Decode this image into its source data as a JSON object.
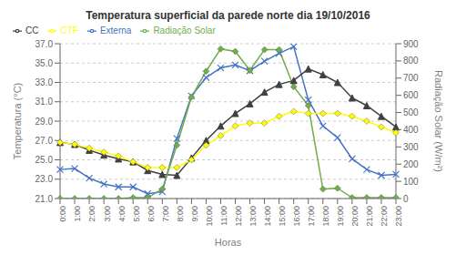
{
  "chart_data": {
    "type": "line",
    "title": "Temperatura superficial da parede norte dia 19/10/2016",
    "xlabel": "Horas",
    "ylabel": "Temperatura (°C)",
    "y2label": "Radiação Solar (W/m²)",
    "categories": [
      "0:00",
      "1:00",
      "2:00",
      "3:00",
      "4:00",
      "5:00",
      "6:00",
      "7:00",
      "8:00",
      "9:00",
      "10:00",
      "11:00",
      "12:00",
      "13:00",
      "14:00",
      "15:00",
      "16:00",
      "17:00",
      "18:00",
      "19:00",
      "20:00",
      "21:00",
      "22:00",
      "23:00"
    ],
    "series": [
      {
        "name": "Externa",
        "color": "#4472C4",
        "marker": "x",
        "values": [
          24.0,
          24.1,
          23.1,
          22.5,
          22.2,
          22.2,
          21.5,
          21.7,
          27.2,
          31.6,
          33.5,
          34.5,
          34.8,
          34.2,
          35.2,
          36.0,
          36.7,
          31.2,
          28.5,
          27.3,
          25.1,
          24.0,
          23.4,
          23.5
        ]
      },
      {
        "name": "CC",
        "color": "#404040",
        "marker": "triangle",
        "values": [
          26.8,
          26.6,
          26.0,
          25.5,
          25.1,
          24.8,
          23.9,
          23.5,
          23.4,
          25.2,
          27.0,
          28.5,
          29.8,
          30.8,
          32.0,
          32.8,
          33.2,
          34.4,
          33.8,
          33.0,
          31.4,
          30.6,
          29.5,
          28.4
        ]
      },
      {
        "name": "CTF",
        "color": "#FFFF00",
        "marker": "diamond",
        "values": [
          26.8,
          26.6,
          26.2,
          25.8,
          25.4,
          24.8,
          24.2,
          24.2,
          24.2,
          25.0,
          26.5,
          27.5,
          28.5,
          28.8,
          28.8,
          29.5,
          30.0,
          29.8,
          29.8,
          29.8,
          29.5,
          29.0,
          28.4,
          27.8
        ]
      },
      {
        "name": "Radiação Solar",
        "color": "#70AD47",
        "marker": "diamond",
        "axis": "y2",
        "values": [
          0,
          0,
          0,
          0,
          0,
          5,
          5,
          55,
          310,
          590,
          740,
          870,
          855,
          745,
          865,
          865,
          650,
          540,
          55,
          60,
          5,
          5,
          5,
          5
        ]
      }
    ],
    "ylim": [
      21.0,
      37.0
    ],
    "yticks": [
      {
        "value": 21.0,
        "label": "21.0"
      },
      {
        "value": 23.0,
        "label": "23.0"
      },
      {
        "value": 25.0,
        "label": "25.0"
      },
      {
        "value": 27.0,
        "label": "27.0"
      },
      {
        "value": 29.0,
        "label": "29.0"
      },
      {
        "value": 31.0,
        "label": "31.0"
      },
      {
        "value": 33.0,
        "label": "33.0"
      },
      {
        "value": 35.0,
        "label": "35.0"
      },
      {
        "value": 37.0,
        "label": "37.0"
      }
    ],
    "y2lim": [
      0,
      900
    ],
    "y2ticks": [
      0,
      100,
      200,
      300,
      400,
      500,
      600,
      700,
      800,
      900
    ],
    "grid": true,
    "legend": "upper left"
  }
}
